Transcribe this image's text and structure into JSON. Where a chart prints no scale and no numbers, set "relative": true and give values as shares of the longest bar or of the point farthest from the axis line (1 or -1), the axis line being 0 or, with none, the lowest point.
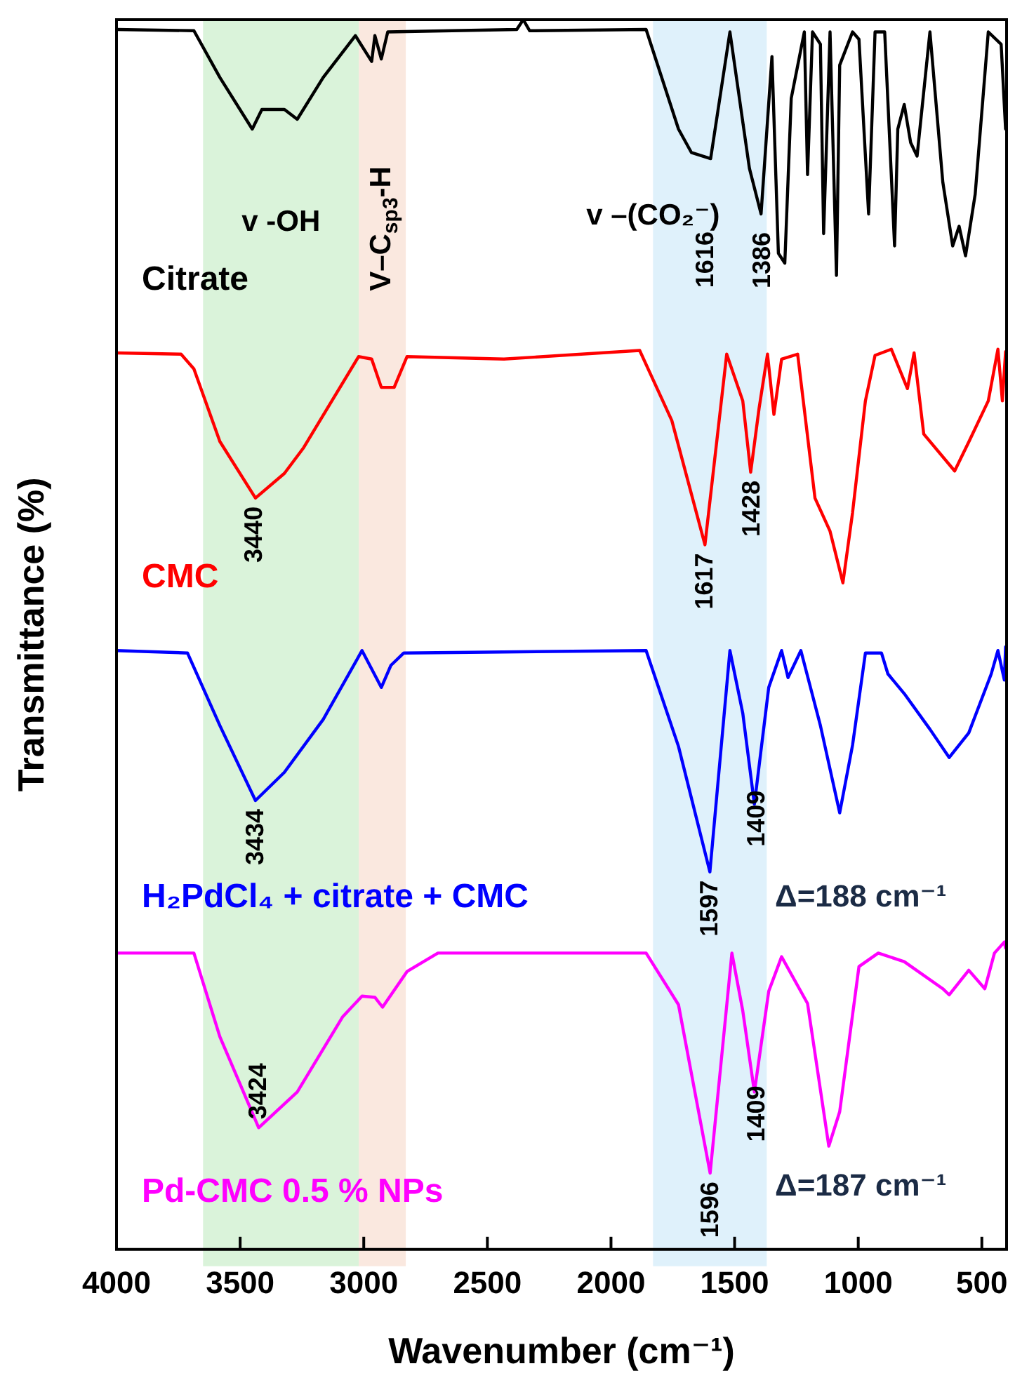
{
  "chart_data": {
    "type": "line",
    "relative": true,
    "xlabel": "Wavenumber (cm⁻¹)",
    "ylabel": "Transmittance (%)",
    "xlim": [
      4000,
      400
    ],
    "xticks": [
      4000,
      3500,
      3000,
      2500,
      2000,
      1500,
      1000,
      500
    ],
    "legend": false,
    "grid": false,
    "marker": "none",
    "line_style": "solid",
    "series": [
      {
        "name": "Citrate",
        "color": "#000000",
        "x": [
          4000,
          3687,
          3582,
          3451,
          3412,
          3321,
          3269,
          3164,
          3034,
          2968,
          2955,
          2929,
          2903,
          2381,
          2355,
          2329,
          1858,
          1727,
          1675,
          1597,
          1519,
          1440,
          1393,
          1349,
          1323,
          1297,
          1271,
          1218,
          1205,
          1185,
          1153,
          1140,
          1114,
          1088,
          1075,
          1023,
          997,
          958,
          932,
          893,
          853,
          840,
          814,
          788,
          762,
          710,
          658,
          618,
          592,
          566,
          527,
          474,
          422,
          404
        ],
        "values": [
          0.992,
          0.991,
          0.953,
          0.911,
          0.927,
          0.927,
          0.919,
          0.953,
          0.987,
          0.966,
          0.987,
          0.968,
          0.99,
          0.992,
          1,
          0.991,
          0.992,
          0.911,
          0.892,
          0.887,
          0.99,
          0.879,
          0.842,
          0.97,
          0.81,
          0.802,
          0.936,
          0.99,
          0.874,
          0.99,
          0.98,
          0.826,
          0.99,
          0.792,
          0.963,
          0.99,
          0.984,
          0.842,
          0.99,
          0.99,
          0.816,
          0.911,
          0.931,
          0.9,
          0.889,
          0.99,
          0.868,
          0.816,
          0.832,
          0.808,
          0.858,
          0.99,
          0.98,
          0.911
        ]
      },
      {
        "name": "CMC",
        "color": "#ff0000",
        "x": [
          4000,
          3739,
          3687,
          3582,
          3438,
          3321,
          3243,
          3021,
          2968,
          2929,
          2877,
          2825,
          2433,
          1884,
          1754,
          1620,
          1532,
          1467,
          1435,
          1401,
          1367,
          1341,
          1310,
          1245,
          1175,
          1114,
          1062,
          1023,
          971,
          932,
          866,
          801,
          774,
          735,
          610,
          552,
          474,
          435,
          417,
          404
        ],
        "values": [
          0.729,
          0.728,
          0.716,
          0.657,
          0.611,
          0.631,
          0.652,
          0.726,
          0.724,
          0.701,
          0.701,
          0.726,
          0.724,
          0.731,
          0.674,
          0.573,
          0.728,
          0.69,
          0.632,
          0.684,
          0.728,
          0.679,
          0.724,
          0.728,
          0.611,
          0.584,
          0.542,
          0.599,
          0.69,
          0.727,
          0.732,
          0.7,
          0.729,
          0.663,
          0.633,
          0.657,
          0.69,
          0.732,
          0.69,
          0.73
        ]
      },
      {
        "name": "H₂PdCl₄ + citrate + CMC",
        "color": "#0000ff",
        "x": [
          4000,
          3713,
          3582,
          3438,
          3321,
          3164,
          3007,
          2929,
          2890,
          2838,
          1858,
          1727,
          1600,
          1519,
          1467,
          1420,
          1362,
          1310,
          1284,
          1232,
          1153,
          1075,
          1023,
          971,
          906,
          880,
          814,
          710,
          632,
          553,
          462,
          435,
          409,
          404
        ],
        "values": [
          0.487,
          0.485,
          0.426,
          0.365,
          0.388,
          0.431,
          0.487,
          0.457,
          0.475,
          0.485,
          0.487,
          0.409,
          0.307,
          0.487,
          0.436,
          0.362,
          0.457,
          0.487,
          0.465,
          0.487,
          0.426,
          0.355,
          0.41,
          0.485,
          0.485,
          0.468,
          0.452,
          0.423,
          0.4,
          0.42,
          0.468,
          0.487,
          0.463,
          0.49
        ]
      },
      {
        "name": "Pd-CMC 0.5 % NPs",
        "color": "#ff00ff",
        "x": [
          4000,
          3687,
          3582,
          3425,
          3269,
          3086,
          3007,
          2955,
          2924,
          2825,
          2700,
          1858,
          1727,
          1599,
          1511,
          1467,
          1420,
          1362,
          1310,
          1205,
          1119,
          1075,
          997,
          919,
          814,
          658,
          632,
          553,
          488,
          449,
          409,
          404
        ],
        "values": [
          0.241,
          0.241,
          0.173,
          0.099,
          0.128,
          0.189,
          0.206,
          0.205,
          0.197,
          0.226,
          0.241,
          0.241,
          0.199,
          0.062,
          0.241,
          0.194,
          0.128,
          0.21,
          0.238,
          0.2,
          0.084,
          0.112,
          0.23,
          0.241,
          0.234,
          0.212,
          0.207,
          0.227,
          0.212,
          0.241,
          0.25,
          0.245
        ]
      }
    ],
    "bands": [
      {
        "axis": "x",
        "from": 3650,
        "to": 3020,
        "label": "v -OH",
        "color": "#d6f2d6"
      },
      {
        "axis": "x",
        "from": 3020,
        "to": 2830,
        "label": "V–C$_{sp3}$-H",
        "color": "#f9e6dc"
      },
      {
        "axis": "x",
        "from": 1830,
        "to": 1370,
        "label": "v –(CO₂⁻)",
        "color": "#dcf0fb"
      }
    ],
    "annotations": [
      {
        "text": "1616",
        "x": 1616,
        "y": 0.887
      },
      {
        "text": "1386",
        "x": 1386,
        "y": 0.842
      },
      {
        "text": "3440",
        "x": 3440,
        "y": 0.611
      },
      {
        "text": "1617",
        "x": 1617,
        "y": 0.573
      },
      {
        "text": "1428",
        "x": 1428,
        "y": 0.632
      },
      {
        "text": "3434",
        "x": 3434,
        "y": 0.365
      },
      {
        "text": "1597",
        "x": 1597,
        "y": 0.307
      },
      {
        "text": "1409",
        "x": 1409,
        "y": 0.38
      },
      {
        "text": "3424",
        "x": 3424,
        "y": 0.099
      },
      {
        "text": "1596",
        "x": 1596,
        "y": 0.062
      },
      {
        "text": "1409",
        "x": 1409,
        "y": 0.14
      },
      "Δ=188 cm⁻¹",
      "Δ=187 cm⁻¹"
    ]
  }
}
